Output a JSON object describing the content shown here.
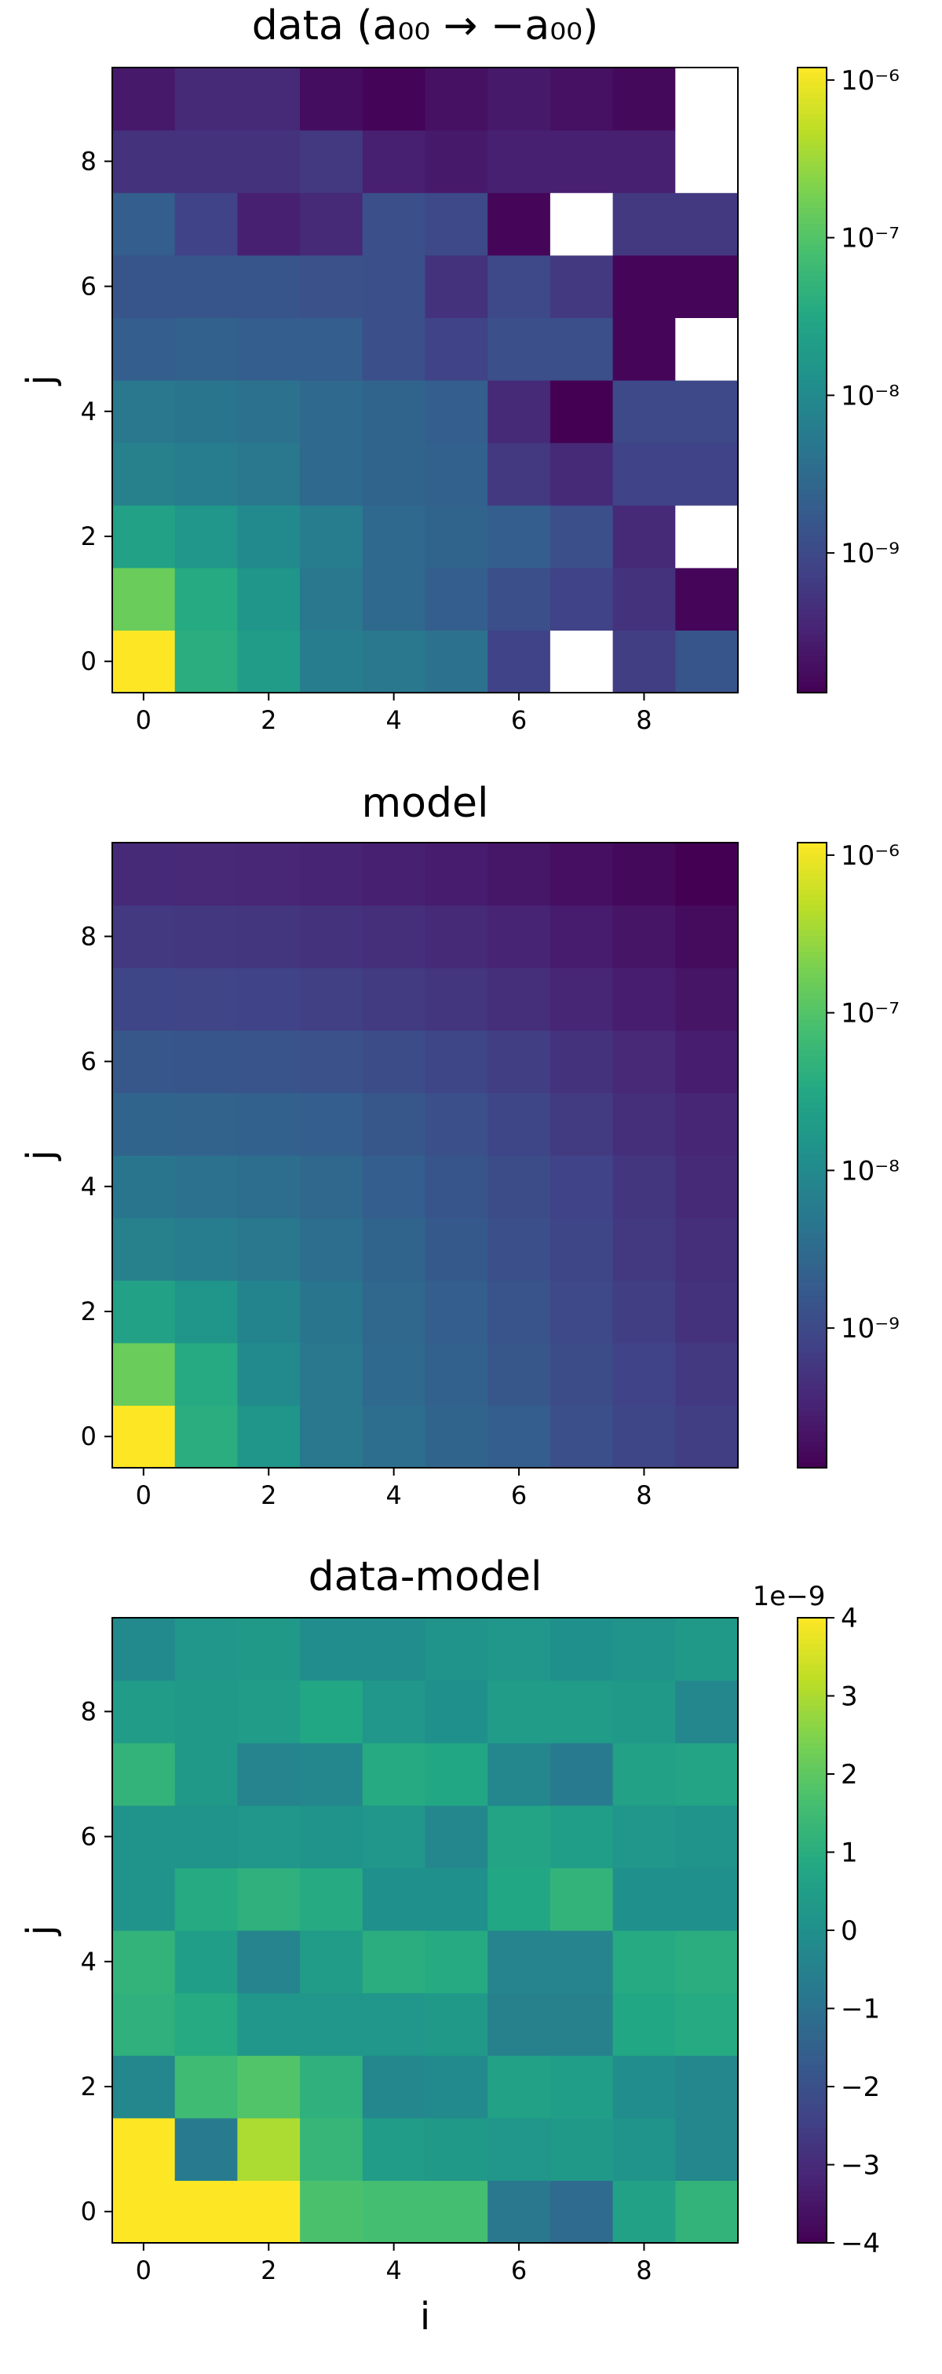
{
  "colormap": "viridis",
  "colors": {
    "missing": "#ffffff",
    "axis": "#000000",
    "background": "#ffffff"
  },
  "chart_data": [
    {
      "type": "heatmap",
      "title": "data (a₀₀ → −a₀₀)",
      "xlabel": "",
      "ylabel": "j",
      "x_ticks": [
        "0",
        "2",
        "4",
        "6",
        "8"
      ],
      "y_ticks": [
        "0",
        "2",
        "4",
        "6",
        "8"
      ],
      "xlim": [
        -0.5,
        9.5
      ],
      "ylim": [
        -0.5,
        9.5
      ],
      "color_scale": "log",
      "color_range": [
        1.3e-10,
        1.2e-06
      ],
      "colorbar_ticks": [
        {
          "value": 1e-06,
          "label": "10⁻⁶"
        },
        {
          "value": 1e-07,
          "label": "10⁻⁷"
        },
        {
          "value": 1e-08,
          "label": "10⁻⁸"
        },
        {
          "value": 1e-09,
          "label": "10⁻⁹"
        }
      ],
      "colorbar_offset_label": "",
      "grid": false,
      "values_note_rows": "rows are j = 0..9, columns are i = 0..9; null = blank cell",
      "values": [
        [
          1.2e-06,
          4e-08,
          2e-08,
          6e-09,
          5e-09,
          4e-09,
          8e-10,
          null,
          7e-10,
          1.5e-09
        ],
        [
          1.5e-07,
          3.5e-08,
          1.5e-08,
          5e-09,
          3e-09,
          2e-09,
          1.2e-09,
          8e-10,
          5e-10,
          1.5e-10
        ],
        [
          2.5e-08,
          1.6e-08,
          1e-08,
          6e-09,
          3e-09,
          2.5e-09,
          2e-09,
          1.2e-09,
          4e-10,
          null
        ],
        [
          7e-09,
          6e-09,
          5e-09,
          3e-09,
          2.5e-09,
          2.2e-09,
          6e-10,
          4e-10,
          8e-10,
          8e-10
        ],
        [
          5e-09,
          4.5e-09,
          4e-09,
          3e-09,
          2.5e-09,
          2e-09,
          4e-10,
          1.3e-10,
          1e-09,
          1e-09
        ],
        [
          2e-09,
          2.2e-09,
          2e-09,
          2e-09,
          1.2e-09,
          8e-10,
          1.2e-09,
          1.2e-09,
          1.5e-10,
          null
        ],
        [
          1.5e-09,
          1.5e-09,
          1.5e-09,
          1.3e-09,
          1.2e-09,
          5e-10,
          1e-09,
          6e-10,
          1.5e-10,
          1.5e-10
        ],
        [
          2e-09,
          8e-10,
          3e-10,
          4e-10,
          1.2e-09,
          1e-09,
          1.5e-10,
          null,
          6e-10,
          6e-10
        ],
        [
          5e-10,
          5e-10,
          5e-10,
          6e-10,
          3e-10,
          2.5e-10,
          3e-10,
          3e-10,
          3e-10,
          null
        ],
        [
          2.5e-10,
          4e-10,
          4e-10,
          1.8e-10,
          1.4e-10,
          2e-10,
          2.5e-10,
          2e-10,
          1.6e-10,
          null
        ]
      ]
    },
    {
      "type": "heatmap",
      "title": "model",
      "xlabel": "",
      "ylabel": "j",
      "x_ticks": [
        "0",
        "2",
        "4",
        "6",
        "8"
      ],
      "y_ticks": [
        "0",
        "2",
        "4",
        "6",
        "8"
      ],
      "xlim": [
        -0.5,
        9.5
      ],
      "ylim": [
        -0.5,
        9.5
      ],
      "color_scale": "log",
      "color_range": [
        1.3e-10,
        1.2e-06
      ],
      "colorbar_ticks": [
        {
          "value": 1e-06,
          "label": "10⁻⁶"
        },
        {
          "value": 1e-07,
          "label": "10⁻⁷"
        },
        {
          "value": 1e-08,
          "label": "10⁻⁸"
        },
        {
          "value": 1e-09,
          "label": "10⁻⁹"
        }
      ],
      "colorbar_offset_label": "",
      "grid": false,
      "values_note_rows": "rows are j = 0..9, columns are i = 0..9",
      "values": [
        [
          1.2e-06,
          4e-08,
          1.5e-08,
          5e-09,
          3.5e-09,
          2.5e-09,
          2e-09,
          1.2e-09,
          9e-10,
          7e-10
        ],
        [
          1.5e-07,
          3.5e-08,
          1e-08,
          5e-09,
          3e-09,
          2.2e-09,
          1.6e-09,
          1.1e-09,
          8e-10,
          6e-10
        ],
        [
          2.5e-08,
          1.5e-08,
          8e-09,
          4.5e-09,
          2.8e-09,
          2e-09,
          1.4e-09,
          1e-09,
          7e-10,
          5e-10
        ],
        [
          7e-09,
          6e-09,
          5e-09,
          3.5e-09,
          2.5e-09,
          1.7e-09,
          1.2e-09,
          9e-10,
          6e-10,
          4.5e-10
        ],
        [
          4.5e-09,
          4e-09,
          3.5e-09,
          2.8e-09,
          2e-09,
          1.5e-09,
          1.1e-09,
          8e-10,
          5.5e-10,
          4e-10
        ],
        [
          2.5e-09,
          2.4e-09,
          2.2e-09,
          2e-09,
          1.6e-09,
          1.2e-09,
          9e-10,
          6.5e-10,
          4.5e-10,
          3.5e-10
        ],
        [
          1.6e-09,
          1.5e-09,
          1.4e-09,
          1.3e-09,
          1.1e-09,
          9e-10,
          7e-10,
          5e-10,
          3.8e-10,
          2.8e-10
        ],
        [
          9e-10,
          8.5e-10,
          8e-10,
          7.5e-10,
          6.5e-10,
          5.5e-10,
          4.5e-10,
          3.5e-10,
          2.8e-10,
          2.2e-10
        ],
        [
          6e-10,
          5.8e-10,
          5.5e-10,
          5e-10,
          4.5e-10,
          4e-10,
          3.3e-10,
          2.7e-10,
          2.2e-10,
          1.7e-10
        ],
        [
          4e-10,
          3.8e-10,
          3.6e-10,
          3.3e-10,
          3e-10,
          2.7e-10,
          2.3e-10,
          1.9e-10,
          1.6e-10,
          1.3e-10
        ]
      ]
    },
    {
      "type": "heatmap",
      "title": "data-model",
      "xlabel": "i",
      "ylabel": "j",
      "x_ticks": [
        "0",
        "2",
        "4",
        "6",
        "8"
      ],
      "y_ticks": [
        "0",
        "2",
        "4",
        "6",
        "8"
      ],
      "xlim": [
        -0.5,
        9.5
      ],
      "ylim": [
        -0.5,
        9.5
      ],
      "color_scale": "linear",
      "color_range": [
        -4e-09,
        4e-09
      ],
      "colorbar_ticks": [
        {
          "value": 4e-09,
          "label": "4"
        },
        {
          "value": 3e-09,
          "label": "3"
        },
        {
          "value": 2e-09,
          "label": "2"
        },
        {
          "value": 1e-09,
          "label": "1"
        },
        {
          "value": 0,
          "label": "0"
        },
        {
          "value": -1e-09,
          "label": "−1"
        },
        {
          "value": -2e-09,
          "label": "−2"
        },
        {
          "value": -3e-09,
          "label": "−3"
        },
        {
          "value": -4e-09,
          "label": "−4"
        }
      ],
      "colorbar_offset_label": "1e−9",
      "grid": false,
      "values_note_rows": "rows are j = 0..9, columns are i = 0..9",
      "values": [
        [
          4e-09,
          4e-09,
          4e-09,
          1.7e-09,
          1.6e-09,
          1.6e-09,
          -8e-10,
          -1.2e-09,
          6e-10,
          1.2e-09
        ],
        [
          4e-09,
          -7e-10,
          3e-09,
          1.3e-09,
          4e-10,
          3e-10,
          2e-10,
          3e-10,
          1e-10,
          -3e-10
        ],
        [
          -3e-10,
          1.5e-09,
          1.8e-09,
          1.1e-09,
          -3e-10,
          -2e-10,
          6e-10,
          5e-10,
          -1e-10,
          -3e-10
        ],
        [
          1.1e-09,
          9e-10,
          2e-10,
          2e-10,
          2e-10,
          3e-10,
          -5e-10,
          -5e-10,
          8e-10,
          9e-10
        ],
        [
          1.2e-09,
          5e-10,
          -4e-10,
          4e-10,
          1e-09,
          9e-10,
          -4e-10,
          -4e-10,
          9e-10,
          1e-09
        ],
        [
          1e-10,
          9e-10,
          1.1e-09,
          9e-10,
          0.0,
          0.0,
          8e-10,
          1.2e-09,
          0.0,
          0.0
        ],
        [
          1e-10,
          1e-10,
          2e-10,
          1e-10,
          2e-10,
          -3e-10,
          7e-10,
          5e-10,
          2e-10,
          1e-10
        ],
        [
          1.2e-09,
          3e-10,
          -4e-10,
          -3e-10,
          9e-10,
          8e-10,
          -3e-10,
          -7e-10,
          6e-10,
          7e-10
        ],
        [
          4e-10,
          3e-10,
          4e-10,
          8e-10,
          2e-10,
          0.0,
          4e-10,
          4e-10,
          3e-10,
          -3e-10
        ],
        [
          -2e-10,
          2e-10,
          3e-10,
          -1e-10,
          -1e-10,
          1e-10,
          2e-10,
          0.0,
          1e-10,
          3e-10
        ]
      ]
    }
  ]
}
